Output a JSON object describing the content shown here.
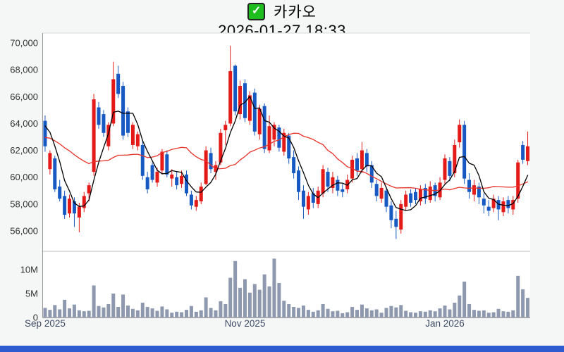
{
  "header": {
    "symbol": "카카오",
    "datetime": "2026-01-27 18:33",
    "check_glyph": "✓"
  },
  "colors": {
    "up_candle": "#e31a17",
    "down_candle": "#1659c2",
    "ma_fast": "#000000",
    "ma_slow": "#e8322a",
    "volume_bar": "#8e98ae",
    "axis_spine": "#999999",
    "volume_base_spine": "#666666",
    "panel_border": "#d9d9d9",
    "panel_separator": "#bbbbbb",
    "panel_bg": "#ffffff",
    "page_bg": "#f5f6f6",
    "price_tick_label": "#333333",
    "volume_tick_label": "#333333",
    "month_label": "#3d4a63",
    "footer_bar": "#2e5bcf",
    "checkbox_green": "#1fbe1f"
  },
  "chart_data": {
    "type": "candlestick_with_volume",
    "title": "카카오",
    "subtitle": "2026-01-27 18:33",
    "grid": "off",
    "legend": "none",
    "price_axis": {
      "side": "left",
      "ylim": [
        54500,
        70800
      ],
      "ticks": [
        {
          "value": 70000,
          "label": "70,000"
        },
        {
          "value": 68000,
          "label": "68,000"
        },
        {
          "value": 66000,
          "label": "66,000"
        },
        {
          "value": 64000,
          "label": "64,000"
        },
        {
          "value": 62000,
          "label": "62,000"
        },
        {
          "value": 60000,
          "label": "60,000"
        },
        {
          "value": 58000,
          "label": "58,000"
        },
        {
          "value": 56000,
          "label": "56,000"
        }
      ]
    },
    "volume_axis": {
      "side": "left",
      "unit": "shares",
      "ylim_millions": [
        0,
        12.9
      ],
      "ticks": [
        {
          "value_millions": 10,
          "label": "10M"
        },
        {
          "value_millions": 5,
          "label": "5M"
        },
        {
          "value_millions": 0,
          "label": "0"
        }
      ]
    },
    "month_ticks": [
      {
        "index": 0,
        "label": "Sep 2025"
      },
      {
        "index": 41,
        "label": "Nov 2025"
      },
      {
        "index": 82,
        "label": "Jan 2026"
      }
    ],
    "overlays": [
      {
        "name": "MA5",
        "color": "#000000",
        "period": 5
      },
      {
        "name": "MA20",
        "color": "#e8322a",
        "period": 20
      }
    ],
    "candle_fields": [
      "open",
      "high",
      "low",
      "close",
      "volume_millions"
    ],
    "candles": [
      [
        64200,
        64600,
        61900,
        62300,
        2.0
      ],
      [
        60600,
        62000,
        60200,
        61800,
        1.6
      ],
      [
        61400,
        61600,
        58900,
        59100,
        2.6
      ],
      [
        59300,
        59800,
        58200,
        58400,
        1.7
      ],
      [
        58600,
        59000,
        56900,
        57200,
        3.7
      ],
      [
        57300,
        58700,
        57000,
        58400,
        1.9
      ],
      [
        58200,
        58500,
        56300,
        57300,
        2.7
      ],
      [
        57000,
        58100,
        55900,
        57800,
        1.5
      ],
      [
        57700,
        58900,
        57400,
        58600,
        1.3
      ],
      [
        58800,
        59600,
        58200,
        59400,
        1.4
      ],
      [
        60400,
        66200,
        60100,
        65800,
        6.7
      ],
      [
        65200,
        65600,
        63600,
        63900,
        2.4
      ],
      [
        64700,
        65000,
        63000,
        63300,
        2.1
      ],
      [
        62300,
        64100,
        62000,
        63900,
        2.8
      ],
      [
        64000,
        68600,
        63800,
        67300,
        5.0
      ],
      [
        67700,
        68300,
        65900,
        66200,
        2.2
      ],
      [
        66800,
        67100,
        62800,
        63100,
        4.8
      ],
      [
        64900,
        65200,
        63000,
        63300,
        2.5
      ],
      [
        62400,
        64100,
        62100,
        63900,
        1.8
      ],
      [
        62300,
        63400,
        62000,
        63200,
        1.5
      ],
      [
        62400,
        62700,
        59800,
        60100,
        3.1
      ],
      [
        60000,
        60400,
        58800,
        59100,
        2.2
      ],
      [
        60900,
        61100,
        59600,
        59800,
        1.9
      ],
      [
        59600,
        60700,
        59300,
        60400,
        1.4
      ],
      [
        60500,
        62100,
        60200,
        61900,
        2.3
      ],
      [
        61700,
        62000,
        60000,
        60200,
        1.7
      ],
      [
        59900,
        60600,
        59300,
        60200,
        1.0
      ],
      [
        60000,
        60400,
        59100,
        59400,
        1.2
      ],
      [
        59500,
        60500,
        59200,
        60100,
        1.1
      ],
      [
        60200,
        60500,
        58600,
        58800,
        1.6
      ],
      [
        58700,
        59000,
        57600,
        57900,
        2.4
      ],
      [
        57800,
        58600,
        57500,
        58300,
        1.2
      ],
      [
        58200,
        59600,
        58000,
        59300,
        1.5
      ],
      [
        59500,
        62300,
        59400,
        62000,
        4.2
      ],
      [
        61800,
        62200,
        60300,
        60600,
        2.0
      ],
      [
        60400,
        61200,
        59800,
        60900,
        1.5
      ],
      [
        61100,
        63600,
        60900,
        63300,
        3.4
      ],
      [
        63500,
        64200,
        62400,
        63900,
        2.8
      ],
      [
        64000,
        69800,
        63800,
        67900,
        8.3
      ],
      [
        68300,
        68400,
        64600,
        64900,
        11.8
      ],
      [
        64700,
        67200,
        64300,
        66800,
        6.2
      ],
      [
        67000,
        67300,
        64100,
        64400,
        8.0
      ],
      [
        64200,
        66400,
        63900,
        66100,
        5.2
      ],
      [
        66300,
        66600,
        63100,
        63400,
        7.0
      ],
      [
        63200,
        65400,
        62800,
        65100,
        5.8
      ],
      [
        65300,
        65500,
        61800,
        62100,
        9.0
      ],
      [
        62000,
        64600,
        61800,
        63800,
        6.5
      ],
      [
        62800,
        64100,
        62300,
        63900,
        12.3
      ],
      [
        63700,
        63900,
        61900,
        62200,
        7.2
      ],
      [
        61900,
        63600,
        61600,
        63300,
        3.5
      ],
      [
        63100,
        63300,
        61000,
        61400,
        2.8
      ],
      [
        61500,
        62000,
        59900,
        60300,
        2.2
      ],
      [
        60500,
        60800,
        58300,
        58900,
        2.0
      ],
      [
        59000,
        59400,
        56900,
        57800,
        2.5
      ],
      [
        57600,
        58900,
        57200,
        58600,
        1.6
      ],
      [
        58800,
        59200,
        57700,
        58100,
        1.2
      ],
      [
        58000,
        59300,
        57700,
        59000,
        1.5
      ],
      [
        58800,
        60900,
        58500,
        60600,
        2.8
      ],
      [
        60400,
        60700,
        58900,
        59300,
        1.8
      ],
      [
        59200,
        60400,
        58800,
        60000,
        1.3
      ],
      [
        59800,
        60100,
        58600,
        59000,
        1.4
      ],
      [
        59100,
        59500,
        58500,
        58900,
        0.9
      ],
      [
        59100,
        60200,
        58800,
        59800,
        1.1
      ],
      [
        59900,
        61600,
        59600,
        61300,
        2.2
      ],
      [
        61400,
        61800,
        60100,
        60500,
        1.6
      ],
      [
        60600,
        62600,
        60300,
        62000,
        2.7
      ],
      [
        61800,
        62100,
        60400,
        60800,
        1.9
      ],
      [
        60900,
        61200,
        59200,
        59600,
        1.5
      ],
      [
        59500,
        59800,
        58200,
        58600,
        1.7
      ],
      [
        58400,
        59600,
        58100,
        59200,
        1.0
      ],
      [
        59000,
        59300,
        57400,
        57800,
        2.0
      ],
      [
        57900,
        58200,
        56200,
        56800,
        2.4
      ],
      [
        56900,
        57500,
        55400,
        56300,
        2.1
      ],
      [
        56100,
        58300,
        55800,
        58000,
        2.6
      ],
      [
        57800,
        59000,
        57500,
        58700,
        1.4
      ],
      [
        58800,
        59100,
        57800,
        58100,
        1.1
      ],
      [
        58900,
        59200,
        58000,
        58300,
        1.0
      ],
      [
        58200,
        59400,
        57900,
        59100,
        1.3
      ],
      [
        59200,
        59500,
        58000,
        58400,
        1.2
      ],
      [
        58300,
        59700,
        58100,
        59300,
        1.5
      ],
      [
        59400,
        59600,
        58200,
        58600,
        1.3
      ],
      [
        58500,
        60000,
        58300,
        59600,
        1.9
      ],
      [
        59800,
        61700,
        59500,
        61400,
        2.5
      ],
      [
        61200,
        61500,
        59700,
        60100,
        1.7
      ],
      [
        60300,
        62800,
        60000,
        62400,
        3.1
      ],
      [
        62600,
        64300,
        62200,
        63900,
        4.6
      ],
      [
        63900,
        64200,
        59500,
        59900,
        7.5
      ],
      [
        59800,
        60300,
        58400,
        58900,
        2.8
      ],
      [
        58700,
        59800,
        58200,
        59400,
        1.6
      ],
      [
        59300,
        59600,
        58000,
        58500,
        1.4
      ],
      [
        58400,
        58800,
        57300,
        57900,
        1.5
      ],
      [
        57800,
        58300,
        57100,
        57500,
        1.0
      ],
      [
        57700,
        58700,
        57400,
        58400,
        1.1
      ],
      [
        58300,
        58600,
        56800,
        57600,
        1.8
      ],
      [
        57400,
        58500,
        57100,
        58200,
        1.3
      ],
      [
        58300,
        58600,
        57300,
        57700,
        1.2
      ],
      [
        57600,
        58600,
        57200,
        58300,
        1.5
      ],
      [
        58400,
        61300,
        58100,
        61100,
        8.7
      ],
      [
        62400,
        62700,
        61000,
        61300,
        5.9
      ],
      [
        61200,
        63400,
        60900,
        62300,
        4.1
      ]
    ]
  }
}
